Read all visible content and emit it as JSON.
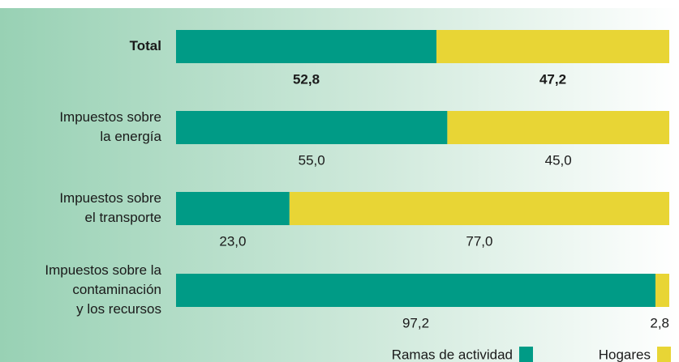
{
  "chart_data": {
    "type": "stacked_bar_horizontal",
    "categories": [
      [
        "Total"
      ],
      [
        "Impuestos sobre",
        "la energía"
      ],
      [
        "Impuestos sobre",
        "el transporte"
      ],
      [
        "Impuestos sobre la",
        "contaminación",
        "y los recursos"
      ]
    ],
    "xlim": [
      0,
      100
    ],
    "series": [
      {
        "name": "Ramas de actividad",
        "color": "#009b86",
        "values": [
          52.8,
          55.0,
          23.0,
          97.2
        ],
        "value_labels": [
          "52,8",
          "55,0",
          "23,0",
          "97,2"
        ]
      },
      {
        "name": "Hogares",
        "color": "#e8d535",
        "values": [
          47.2,
          45.0,
          77.0,
          2.8
        ],
        "value_labels": [
          "47,2",
          "45,0",
          "77,0",
          "2,8"
        ]
      }
    ],
    "legend": "bottom-right"
  }
}
